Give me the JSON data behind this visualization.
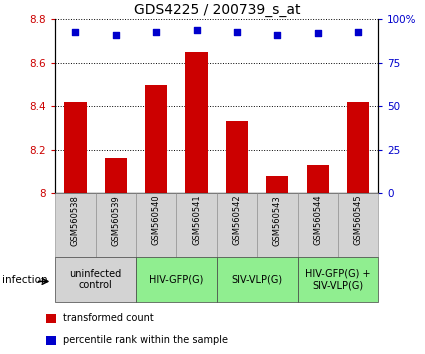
{
  "title": "GDS4225 / 200739_s_at",
  "samples": [
    "GSM560538",
    "GSM560539",
    "GSM560540",
    "GSM560541",
    "GSM560542",
    "GSM560543",
    "GSM560544",
    "GSM560545"
  ],
  "transformed_counts": [
    8.42,
    8.16,
    8.5,
    8.65,
    8.33,
    8.08,
    8.13,
    8.42
  ],
  "percentile_ranks": [
    93,
    91,
    93,
    94,
    93,
    91,
    92,
    93
  ],
  "ylim_left": [
    8.0,
    8.8
  ],
  "ylim_right": [
    0,
    100
  ],
  "yticks_left": [
    8.0,
    8.2,
    8.4,
    8.6,
    8.8
  ],
  "yticks_right": [
    0,
    25,
    50,
    75,
    100
  ],
  "bar_color": "#cc0000",
  "dot_color": "#0000cc",
  "bg_plot": "#ffffff",
  "bg_xticklabels": "#d3d3d3",
  "groups": [
    {
      "label": "uninfected\ncontrol",
      "start": 0,
      "end": 2,
      "color": "#d3d3d3"
    },
    {
      "label": "HIV-GFP(G)",
      "start": 2,
      "end": 4,
      "color": "#90ee90"
    },
    {
      "label": "SIV-VLP(G)",
      "start": 4,
      "end": 6,
      "color": "#90ee90"
    },
    {
      "label": "HIV-GFP(G) +\nSIV-VLP(G)",
      "start": 6,
      "end": 8,
      "color": "#90ee90"
    }
  ],
  "legend_items": [
    {
      "color": "#cc0000",
      "label": "transformed count"
    },
    {
      "color": "#0000cc",
      "label": "percentile rank within the sample"
    }
  ],
  "infection_label": "infection",
  "left_ylabel_color": "#cc0000",
  "right_ylabel_color": "#0000cc",
  "title_fontsize": 10,
  "tick_fontsize": 7.5,
  "sample_fontsize": 6,
  "group_fontsize": 7,
  "legend_fontsize": 7,
  "infection_fontsize": 7.5
}
